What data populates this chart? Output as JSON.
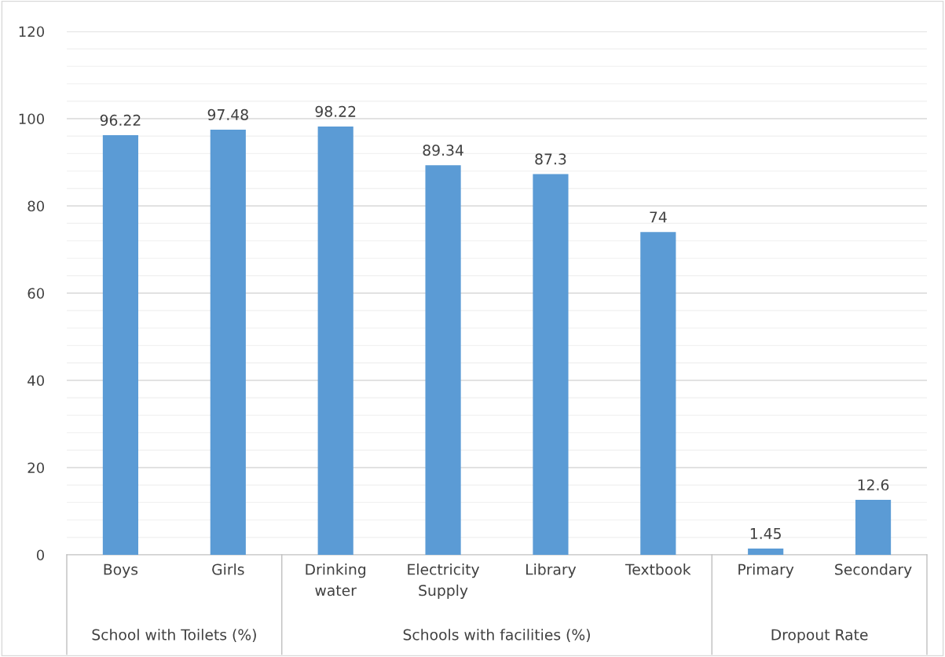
{
  "chart_data": {
    "type": "bar",
    "categories": [
      "Boys",
      "Girls",
      "Drinking\nwater",
      "Electricity\nSupply",
      "Library",
      "Textbook",
      "Primary",
      "Secondary"
    ],
    "values": [
      96.22,
      97.48,
      98.22,
      89.34,
      87.3,
      74,
      1.45,
      12.6
    ],
    "value_labels": [
      "96.22",
      "97.48",
      "98.22",
      "89.34",
      "87.3",
      "74",
      "1.45",
      "12.6"
    ],
    "color": "#5b9bd5",
    "ylim": [
      0,
      120
    ],
    "yticks": [
      0,
      20,
      40,
      60,
      80,
      100,
      120
    ],
    "grid": "y",
    "annotations": [
      "School with Toilets (%)",
      "Schools with facilities (%)",
      "Dropout Rate"
    ]
  }
}
